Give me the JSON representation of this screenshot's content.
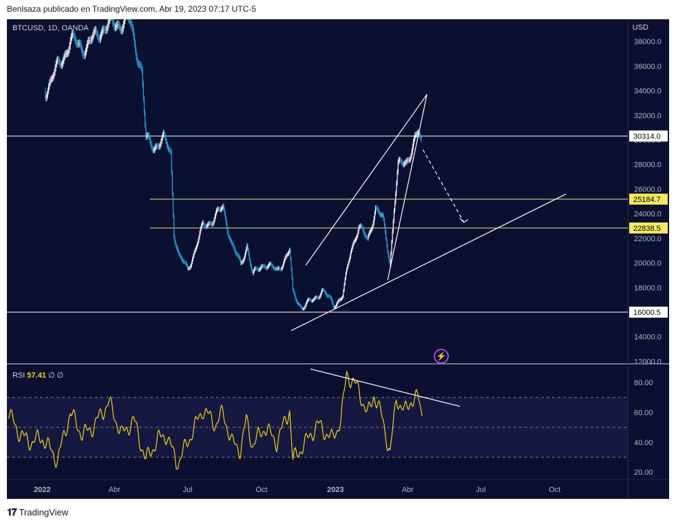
{
  "header_text": "Benlsaza publicado en TradingView.com, Abr 19, 2023 07:17 UTC-5",
  "footer_text": "TradingView",
  "legend": {
    "symbol": "BTCUSD, 1D, OANDA",
    "rsi_label": "RSI",
    "rsi_value": "57.41",
    "rsi_extra": "∅ ∅"
  },
  "currency": "USD",
  "chart_data": [
    {
      "type": "candlestick",
      "title": "BTCUSD, 1D, OANDA",
      "ylabel": "USD",
      "ylim": [
        11800,
        39800
      ],
      "xlim": [
        "2021-11-18",
        "2023-12-31"
      ],
      "x_ticks": [
        {
          "date": "2022-01-01",
          "label": "2022"
        },
        {
          "date": "2022-04-01",
          "label": "Abr"
        },
        {
          "date": "2022-07-01",
          "label": "Jul"
        },
        {
          "date": "2022-10-01",
          "label": "Oct"
        },
        {
          "date": "2023-01-01",
          "label": "2023"
        },
        {
          "date": "2023-04-01",
          "label": "Abr"
        },
        {
          "date": "2023-07-01",
          "label": "Jul"
        },
        {
          "date": "2023-10-01",
          "label": "Oct"
        }
      ],
      "y_ticks": [
        "12000.0",
        "14000.0",
        "16000.0",
        "18000.0",
        "20000.0",
        "22000.0",
        "24000.0",
        "26000.0",
        "28000.0",
        "30000.0",
        "32000.0",
        "34000.0",
        "36000.0",
        "38000.0"
      ],
      "price_levels": [
        {
          "label": "30314.0",
          "value": 30314,
          "color": "#ffffff",
          "from": "2021-11-18"
        },
        {
          "label": "25184.7",
          "value": 25184.7,
          "color": "#f2e863",
          "from": "2022-05-15"
        },
        {
          "label": "22838.5",
          "value": 22838.5,
          "color": "#f2e863",
          "from": "2022-05-15"
        },
        {
          "label": "16000.5",
          "value": 16000.5,
          "color": "#ffffff",
          "from": "2021-11-18"
        }
      ],
      "close_series": [
        {
          "date": "2022-01-05",
          "value": 34000
        },
        {
          "date": "2022-01-25",
          "value": 36500
        },
        {
          "date": "2022-02-05",
          "value": 38000
        },
        {
          "date": "2022-02-25",
          "value": 37500
        },
        {
          "date": "2022-03-15",
          "value": 39000
        },
        {
          "date": "2022-04-05",
          "value": 39500
        },
        {
          "date": "2022-04-20",
          "value": 39600
        },
        {
          "date": "2022-05-05",
          "value": 35500
        },
        {
          "date": "2022-05-10",
          "value": 30000
        },
        {
          "date": "2022-05-20",
          "value": 29500
        },
        {
          "date": "2022-06-01",
          "value": 30000
        },
        {
          "date": "2022-06-10",
          "value": 29000
        },
        {
          "date": "2022-06-14",
          "value": 22500
        },
        {
          "date": "2022-06-20",
          "value": 20500
        },
        {
          "date": "2022-07-01",
          "value": 19500
        },
        {
          "date": "2022-07-10",
          "value": 21000
        },
        {
          "date": "2022-07-20",
          "value": 23000
        },
        {
          "date": "2022-08-01",
          "value": 23500
        },
        {
          "date": "2022-08-14",
          "value": 24500
        },
        {
          "date": "2022-08-25",
          "value": 21500
        },
        {
          "date": "2022-09-05",
          "value": 19800
        },
        {
          "date": "2022-09-13",
          "value": 21500
        },
        {
          "date": "2022-09-20",
          "value": 19000
        },
        {
          "date": "2022-10-05",
          "value": 20000
        },
        {
          "date": "2022-10-20",
          "value": 19300
        },
        {
          "date": "2022-11-05",
          "value": 21000
        },
        {
          "date": "2022-11-09",
          "value": 17500
        },
        {
          "date": "2022-11-20",
          "value": 16400
        },
        {
          "date": "2022-12-05",
          "value": 17000
        },
        {
          "date": "2022-12-15",
          "value": 17800
        },
        {
          "date": "2022-12-30",
          "value": 16600
        },
        {
          "date": "2023-01-10",
          "value": 17300
        },
        {
          "date": "2023-01-20",
          "value": 21000
        },
        {
          "date": "2023-01-30",
          "value": 23000
        },
        {
          "date": "2023-02-10",
          "value": 21800
        },
        {
          "date": "2023-02-20",
          "value": 24500
        },
        {
          "date": "2023-03-01",
          "value": 23500
        },
        {
          "date": "2023-03-10",
          "value": 20000
        },
        {
          "date": "2023-03-15",
          "value": 24500
        },
        {
          "date": "2023-03-20",
          "value": 27800
        },
        {
          "date": "2023-03-30",
          "value": 28200
        },
        {
          "date": "2023-04-10",
          "value": 30000
        },
        {
          "date": "2023-04-14",
          "value": 30500
        },
        {
          "date": "2023-04-19",
          "value": 29400
        }
      ],
      "drawings": [
        {
          "kind": "upper-wedge-line",
          "from": {
            "date": "2022-11-25",
            "value": 19800
          },
          "to": {
            "date": "2023-04-25",
            "value": 33700
          }
        },
        {
          "kind": "inner-wedge-line",
          "from": {
            "date": "2023-03-07",
            "value": 18600
          },
          "to": {
            "date": "2023-04-25",
            "value": 33700
          }
        },
        {
          "kind": "support-line",
          "from": {
            "date": "2022-11-07",
            "value": 14500
          },
          "to": {
            "date": "2023-10-15",
            "value": 25600
          }
        },
        {
          "kind": "projection-arrow-dashed",
          "from": {
            "date": "2023-04-20",
            "value": 29200
          },
          "to": {
            "date": "2023-06-10",
            "value": 23300
          }
        }
      ]
    },
    {
      "type": "line",
      "title": "RSI",
      "ylim": [
        15,
        92
      ],
      "y_ticks": [
        "20.00",
        "40.00",
        "60.00",
        "80.00"
      ],
      "bands": [
        70,
        50,
        30
      ],
      "current": 57.41,
      "series": [
        {
          "points": [
            {
              "date": "2021-11-20",
              "value": 60
            },
            {
              "date": "2021-12-01",
              "value": 48
            },
            {
              "date": "2021-12-15",
              "value": 40
            },
            {
              "date": "2022-01-01",
              "value": 43
            },
            {
              "date": "2022-01-20",
              "value": 28
            },
            {
              "date": "2022-02-05",
              "value": 60
            },
            {
              "date": "2022-02-20",
              "value": 45
            },
            {
              "date": "2022-03-05",
              "value": 50
            },
            {
              "date": "2022-03-25",
              "value": 67
            },
            {
              "date": "2022-04-10",
              "value": 45
            },
            {
              "date": "2022-04-25",
              "value": 55
            },
            {
              "date": "2022-05-10",
              "value": 28
            },
            {
              "date": "2022-05-25",
              "value": 42
            },
            {
              "date": "2022-06-05",
              "value": 45
            },
            {
              "date": "2022-06-18",
              "value": 25
            },
            {
              "date": "2022-07-01",
              "value": 40
            },
            {
              "date": "2022-07-20",
              "value": 62
            },
            {
              "date": "2022-08-05",
              "value": 52
            },
            {
              "date": "2022-08-14",
              "value": 60
            },
            {
              "date": "2022-08-25",
              "value": 40
            },
            {
              "date": "2022-09-05",
              "value": 35
            },
            {
              "date": "2022-09-12",
              "value": 55
            },
            {
              "date": "2022-09-20",
              "value": 38
            },
            {
              "date": "2022-10-05",
              "value": 50
            },
            {
              "date": "2022-10-20",
              "value": 40
            },
            {
              "date": "2022-11-05",
              "value": 62
            },
            {
              "date": "2022-11-09",
              "value": 28
            },
            {
              "date": "2022-11-25",
              "value": 40
            },
            {
              "date": "2022-12-10",
              "value": 52
            },
            {
              "date": "2022-12-28",
              "value": 42
            },
            {
              "date": "2023-01-08",
              "value": 55
            },
            {
              "date": "2023-01-15",
              "value": 86
            },
            {
              "date": "2023-01-30",
              "value": 75
            },
            {
              "date": "2023-02-10",
              "value": 58
            },
            {
              "date": "2023-02-18",
              "value": 72
            },
            {
              "date": "2023-03-01",
              "value": 55
            },
            {
              "date": "2023-03-10",
              "value": 32
            },
            {
              "date": "2023-03-18",
              "value": 70
            },
            {
              "date": "2023-03-28",
              "value": 60
            },
            {
              "date": "2023-04-05",
              "value": 68
            },
            {
              "date": "2023-04-14",
              "value": 70
            },
            {
              "date": "2023-04-19",
              "value": 57.41
            }
          ]
        }
      ],
      "drawings": [
        {
          "kind": "resistance-line",
          "from": {
            "date": "2022-12-01",
            "value": 89
          },
          "to": {
            "date": "2023-06-05",
            "value": 64
          }
        }
      ]
    }
  ]
}
